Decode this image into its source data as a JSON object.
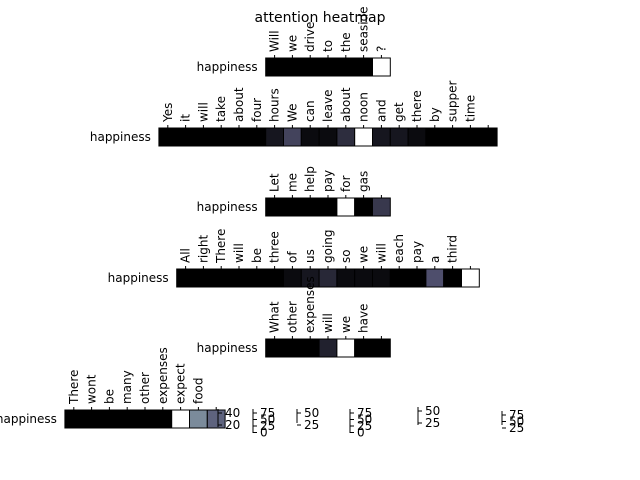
{
  "chart_data": {
    "type": "heatmap",
    "title": "attention heatmap",
    "colormap": "bone",
    "colors": {
      "background": "#ffffff",
      "cell_border": "#000000",
      "text": "#000000"
    },
    "panels": [
      {
        "row_label": "happiness",
        "tokens": [
          "Will",
          "we",
          "drive",
          "to",
          "the",
          "seaside",
          "?"
        ],
        "values": [
          0.0,
          0.0,
          0.0,
          0.0,
          0.0,
          0.0,
          1.0
        ]
      },
      {
        "row_label": "happiness",
        "tokens": [
          "Yes",
          "it",
          "will",
          "take",
          "about",
          "four",
          "hours",
          "We",
          "can",
          "leave",
          "about",
          "noon",
          "and",
          "get",
          "there",
          "by",
          "supper",
          "time",
          ""
        ],
        "values": [
          0.0,
          0.0,
          0.0,
          0.0,
          0.0,
          0.0,
          0.1,
          0.3,
          0.05,
          0.05,
          0.2,
          1.0,
          0.1,
          0.1,
          0.05,
          0.0,
          0.0,
          0.0,
          0.0
        ]
      },
      {
        "row_label": "happiness",
        "tokens": [
          "Let",
          "me",
          "help",
          "pay",
          "for",
          "gas",
          ""
        ],
        "values": [
          0.0,
          0.0,
          0.0,
          0.0,
          1.0,
          0.0,
          0.25
        ]
      },
      {
        "row_label": "happiness",
        "tokens": [
          "All",
          "right",
          "There",
          "will",
          "be",
          "three",
          "of",
          "us",
          "going",
          "so",
          "we",
          "will",
          "each",
          "pay",
          "a",
          "third",
          ""
        ],
        "values": [
          0.0,
          0.0,
          0.0,
          0.0,
          0.0,
          0.0,
          0.05,
          0.1,
          0.18,
          0.05,
          0.05,
          0.05,
          0.0,
          0.0,
          0.35,
          0.0,
          1.0
        ]
      },
      {
        "row_label": "happiness",
        "tokens": [
          "What",
          "other",
          "expenses",
          "will",
          "we",
          "have",
          ""
        ],
        "values": [
          0.0,
          0.0,
          0.0,
          0.15,
          1.0,
          0.0,
          0.0
        ]
      },
      {
        "row_label": "happiness",
        "tokens": [
          "There",
          "wont",
          "be",
          "many",
          "other",
          "expenses",
          "expect",
          "food",
          ""
        ],
        "values": [
          0.0,
          0.0,
          0.0,
          0.0,
          0.0,
          0.0,
          1.0,
          0.55,
          0.42
        ]
      }
    ],
    "colorbars": [
      {
        "ticks": [
          "40",
          "20"
        ]
      },
      {
        "ticks": [
          "75",
          "50",
          "25",
          "0"
        ]
      },
      {
        "ticks": [
          "50",
          "25"
        ]
      },
      {
        "ticks": [
          "75",
          "50",
          "25",
          "0"
        ]
      },
      {
        "ticks": [
          "50",
          "25"
        ]
      },
      {
        "ticks": [
          "75",
          "50",
          "25"
        ]
      }
    ]
  }
}
